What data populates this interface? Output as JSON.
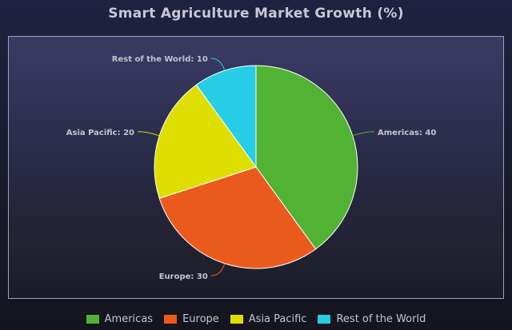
{
  "colors": {
    "americas": "#52b234",
    "europe": "#eb5a1d",
    "asia_pacific": "#dedf00",
    "rest_of_world": "#27cce6"
  },
  "chart_data": {
    "type": "pie",
    "title": "Smart Agriculture Market Growth (%)",
    "slices": [
      {
        "label": "Americas",
        "value": 40,
        "color": "#52b234"
      },
      {
        "label": "Europe",
        "value": 30,
        "color": "#eb5a1d"
      },
      {
        "label": "Asia Pacific",
        "value": 20,
        "color": "#dedf00"
      },
      {
        "label": "Rest of the World",
        "value": 10,
        "color": "#27cce6"
      }
    ],
    "data_labels": [
      "Americas: 40",
      "Europe: 30",
      "Asia Pacific: 20",
      "Rest of the World: 10"
    ],
    "legend": {
      "position": "bottom"
    }
  }
}
